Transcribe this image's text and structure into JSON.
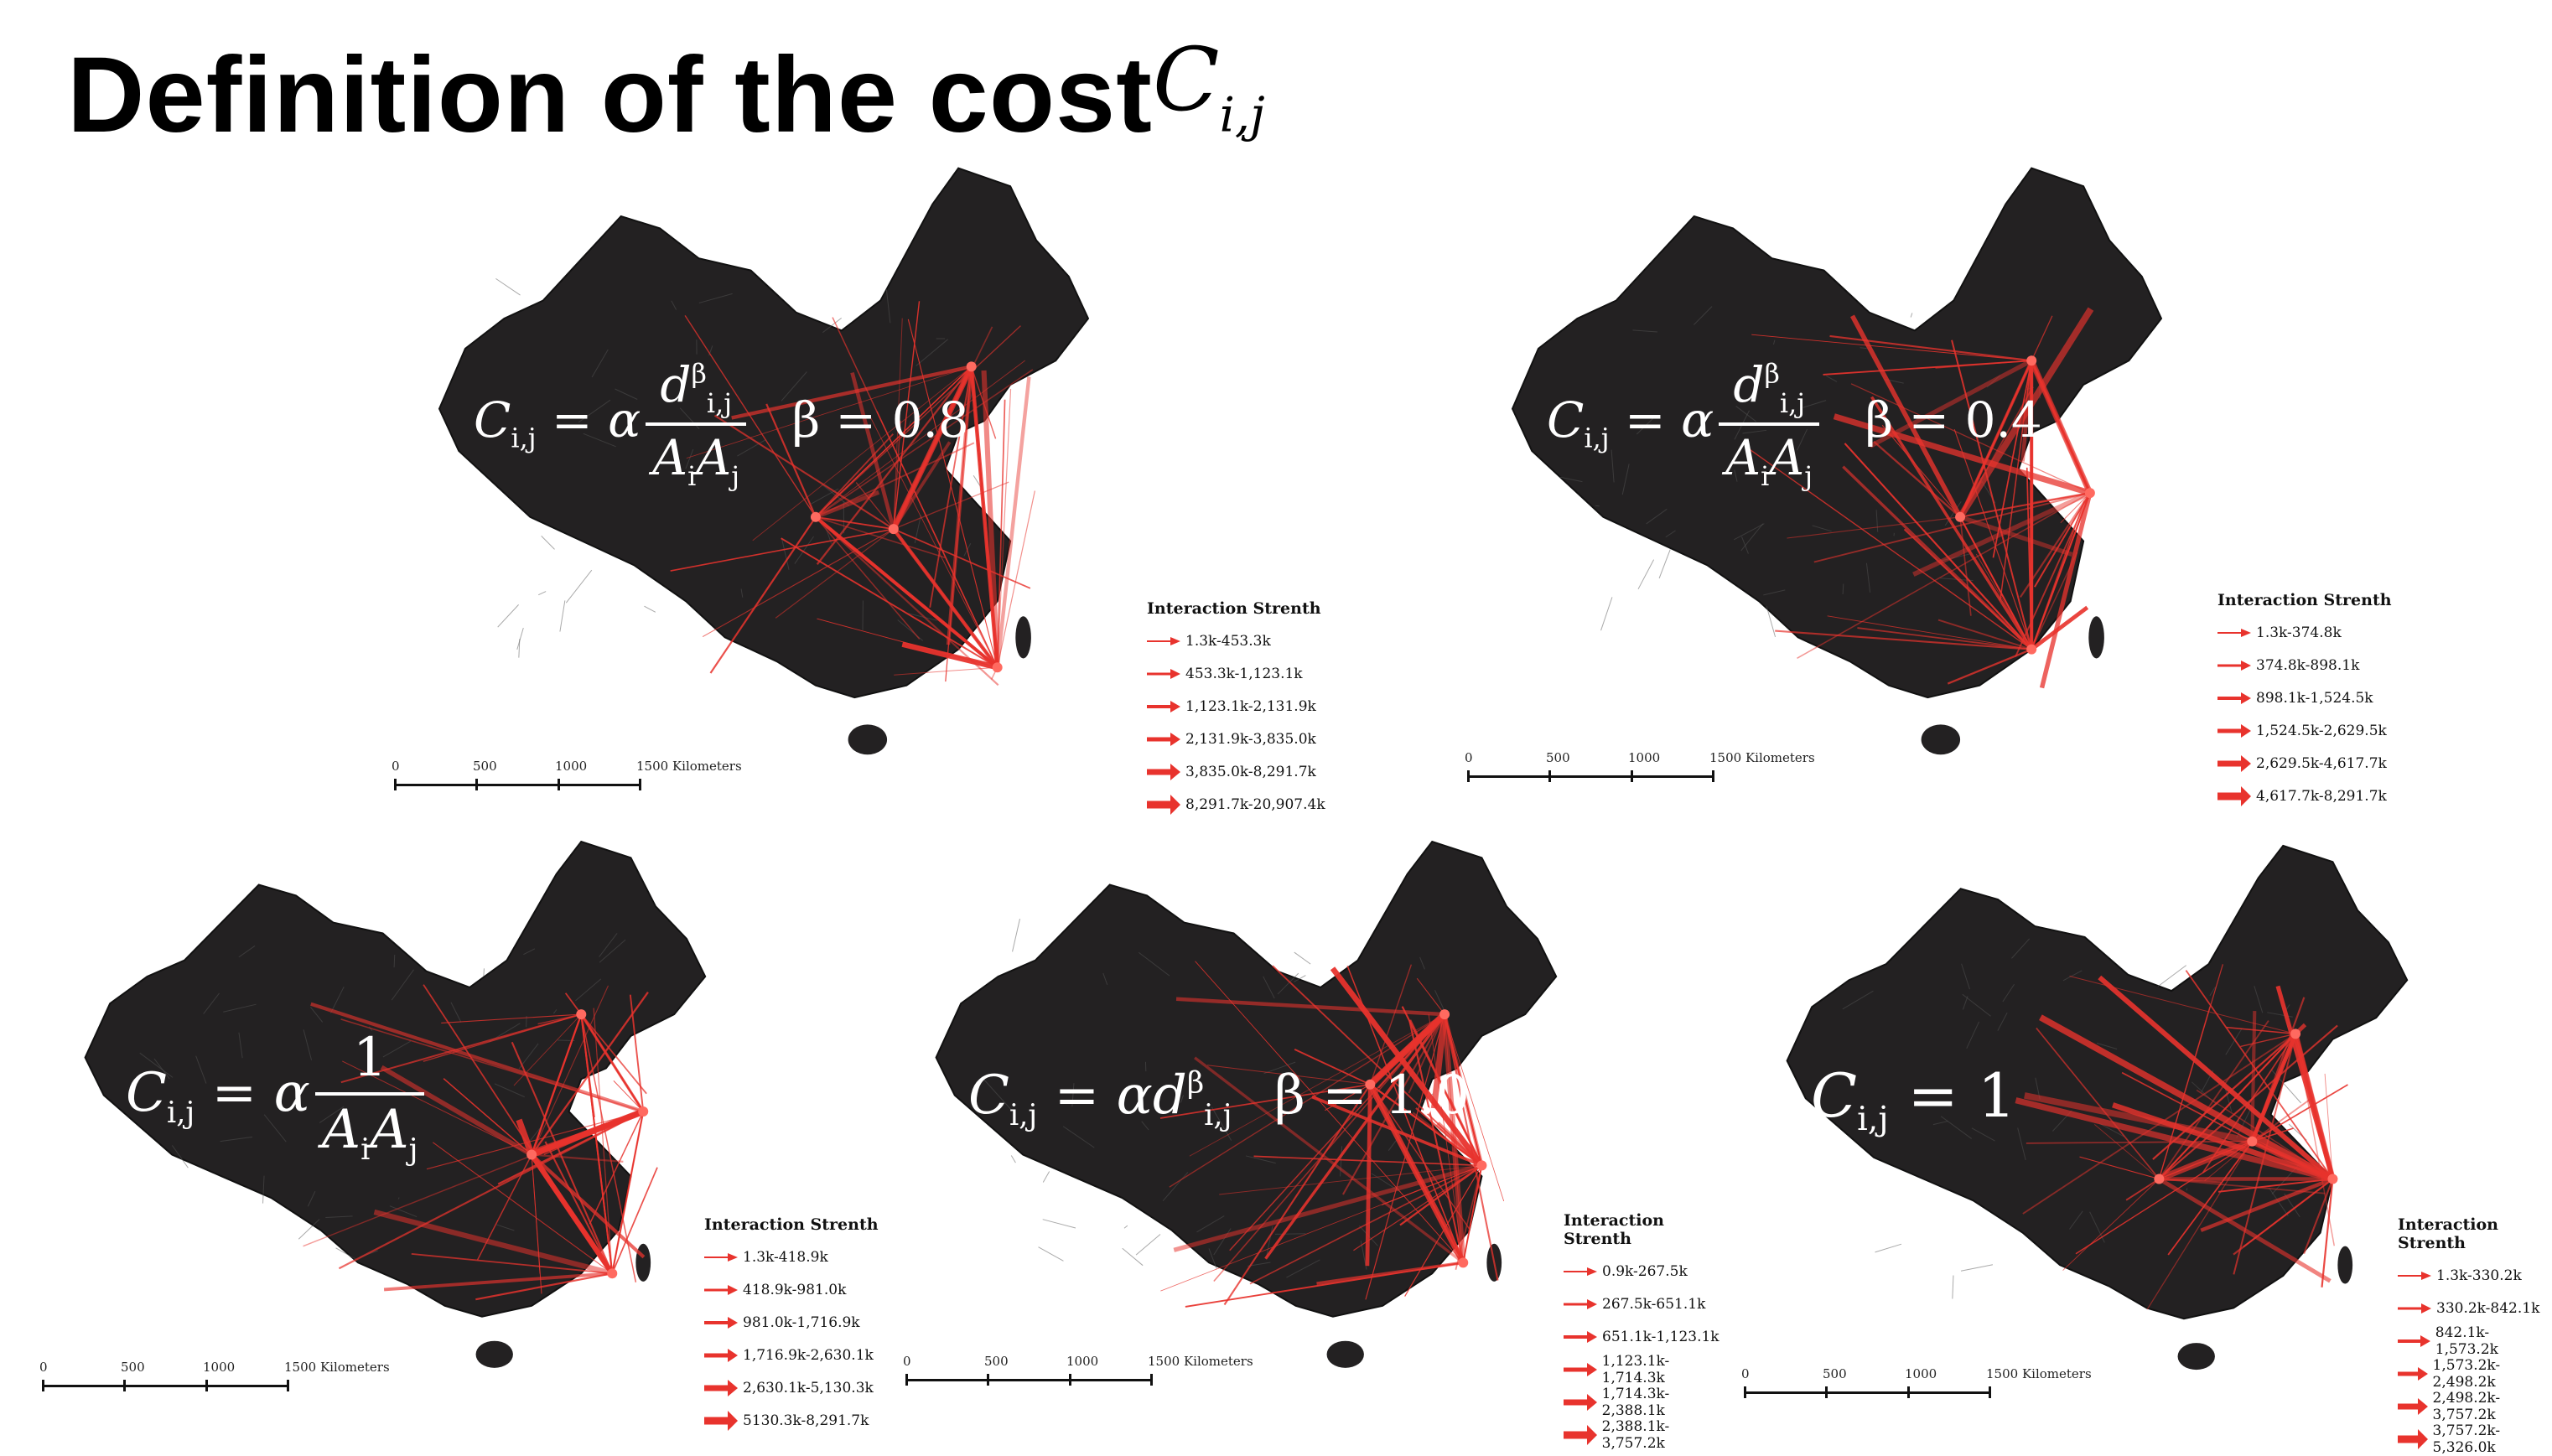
{
  "title": "Definition of the cost",
  "title_math": {
    "base": "C",
    "sub": "i,j"
  },
  "legend_title": "Interaction Strenth",
  "scale": {
    "ticks": [
      "0",
      "500",
      "1000",
      "1500 Kilometers"
    ]
  },
  "map_colors": {
    "land": "#232122",
    "flow": "#e8332d",
    "border": "#555555"
  },
  "panels": [
    {
      "id": "p1",
      "formula": "C_{i,j} = α d_{i,j}^β / (A_i A_j)",
      "beta": "β = 0.8",
      "legend": [
        "1.3k-453.3k",
        "453.3k-1,123.1k",
        "1,123.1k-2,131.9k",
        "2,131.9k-3,835.0k",
        "3,835.0k-8,291.7k",
        "8,291.7k-20,907.4k"
      ]
    },
    {
      "id": "p2",
      "formula": "C_{i,j} = α d_{i,j}^β / (A_i A_j)",
      "beta": "β = 0.4",
      "legend": [
        "1.3k-374.8k",
        "374.8k-898.1k",
        "898.1k-1,524.5k",
        "1,524.5k-2,629.5k",
        "2,629.5k-4,617.7k",
        "4,617.7k-8,291.7k"
      ]
    },
    {
      "id": "p3",
      "formula": "C_{i,j} = α 1 / (A_i A_j)",
      "beta": "",
      "legend": [
        "1.3k-418.9k",
        "418.9k-981.0k",
        "981.0k-1,716.9k",
        "1,716.9k-2,630.1k",
        "2,630.1k-5,130.3k",
        "5130.3k-8,291.7k"
      ]
    },
    {
      "id": "p4",
      "formula": "C_{i,j} = α d_{i,j}^β",
      "beta": "β = 1.0",
      "legend": [
        "0.9k-267.5k",
        "267.5k-651.1k",
        "651.1k-1,123.1k",
        "1,123.1k-1,714.3k",
        "1,714.3k-2,388.1k",
        "2,388.1k-3,757.2k"
      ]
    },
    {
      "id": "p5",
      "formula": "C_{i,j} = 1",
      "beta": "",
      "legend": [
        "1.3k-330.2k",
        "330.2k-842.1k",
        "842.1k-1,573.2k",
        "1,573.2k-2,498.2k",
        "2,498.2k-3,757.2k",
        "3,757.2k-5,326.0k"
      ]
    }
  ]
}
